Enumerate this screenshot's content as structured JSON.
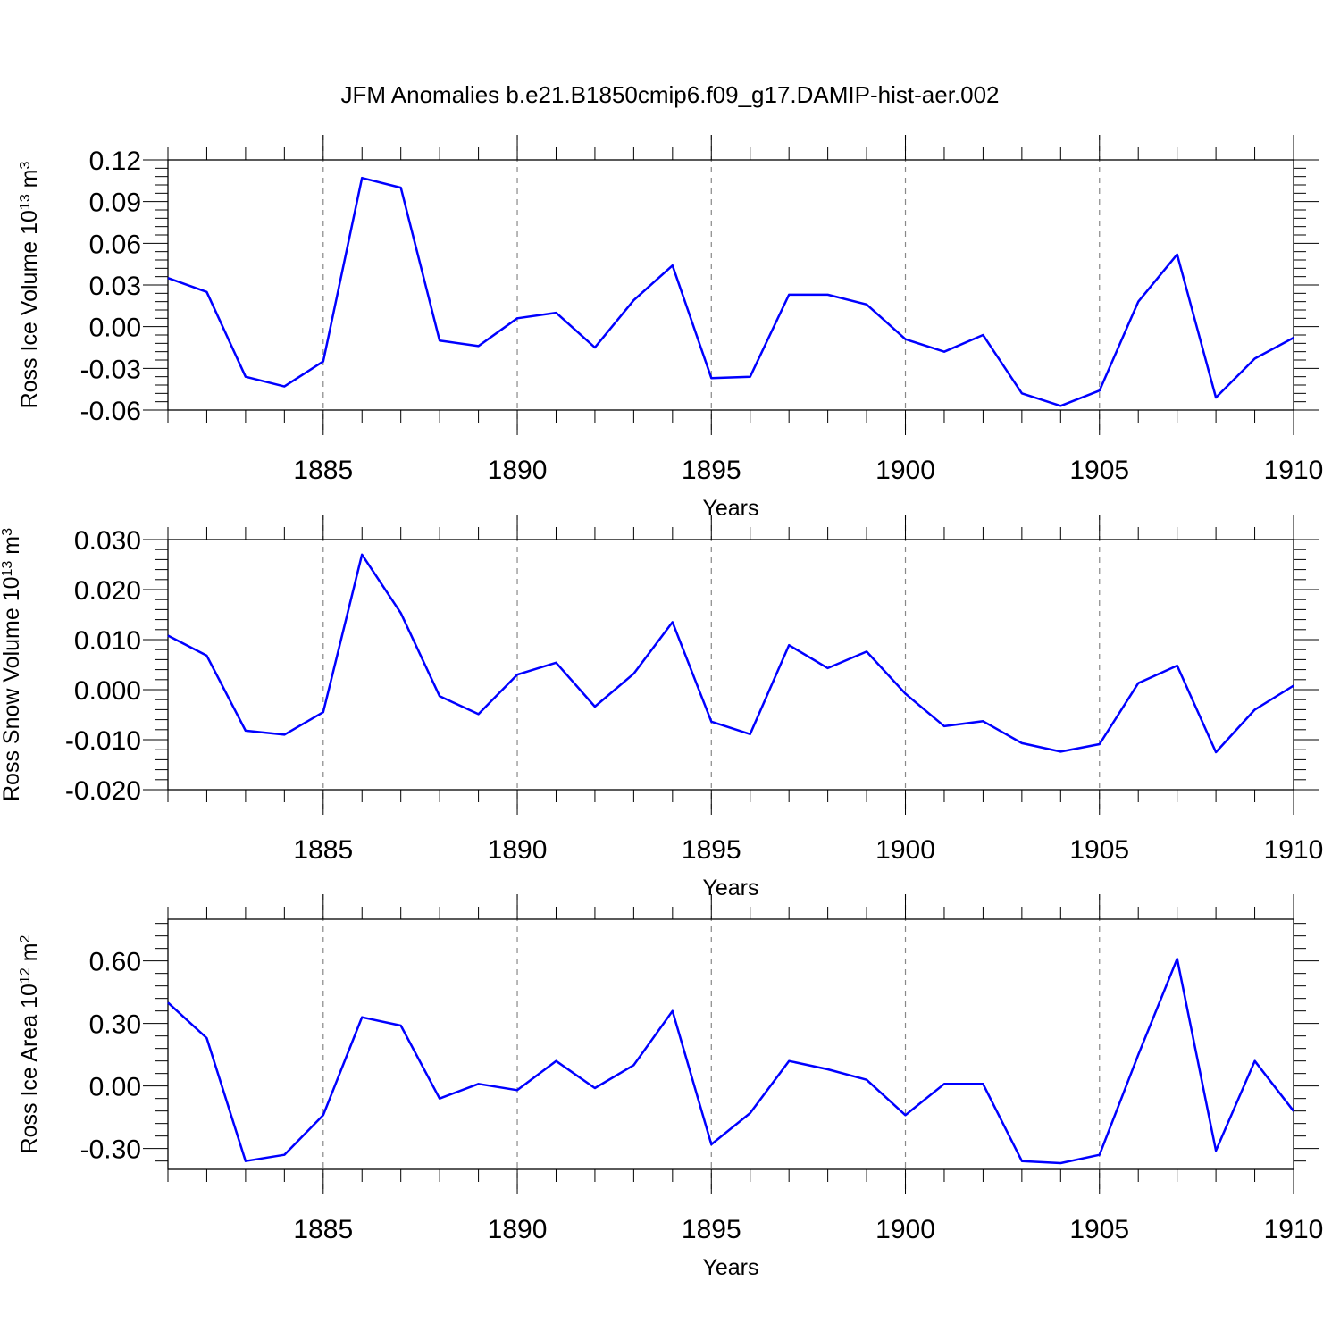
{
  "title": "JFM Anomalies b.e21.B1850cmip6.f09_g17.DAMIP-hist-aer.002",
  "chart_data": [
    {
      "type": "line",
      "xlabel": "Years",
      "ylabel": "Ross Ice Volume 10",
      "ylabel_sup": "13",
      "ylabel_unit": " m",
      "ylabel_unit_sup": "3",
      "x": [
        1881,
        1882,
        1883,
        1884,
        1885,
        1886,
        1887,
        1888,
        1889,
        1890,
        1891,
        1892,
        1893,
        1894,
        1895,
        1896,
        1897,
        1898,
        1899,
        1900,
        1901,
        1902,
        1903,
        1904,
        1905,
        1906,
        1907,
        1908,
        1909,
        1910
      ],
      "xlim": [
        1881,
        1910
      ],
      "xticks": [
        "1885",
        "1890",
        "1895",
        "1900",
        "1905",
        "1910"
      ],
      "ylim": [
        -0.06,
        0.12
      ],
      "yticks": [
        "-0.06",
        "-0.03",
        "0.00",
        "0.03",
        "0.06",
        "0.09",
        "0.12"
      ],
      "series": [
        {
          "values": [
            0.035,
            0.025,
            -0.036,
            -0.043,
            -0.025,
            0.107,
            0.1,
            -0.01,
            -0.014,
            0.006,
            0.01,
            -0.015,
            0.019,
            0.044,
            -0.037,
            -0.036,
            0.023,
            0.023,
            0.016,
            -0.009,
            -0.018,
            -0.006,
            -0.048,
            -0.057,
            -0.046,
            0.018,
            0.052,
            -0.051,
            -0.023,
            -0.008
          ]
        }
      ],
      "grid": "dashed vertical at major x ticks",
      "color": "#0000ff"
    },
    {
      "type": "line",
      "xlabel": "Years",
      "ylabel": "Ross Snow Volume 10",
      "ylabel_sup": "13",
      "ylabel_unit": " m",
      "ylabel_unit_sup": "3",
      "x": [
        1881,
        1882,
        1883,
        1884,
        1885,
        1886,
        1887,
        1888,
        1889,
        1890,
        1891,
        1892,
        1893,
        1894,
        1895,
        1896,
        1897,
        1898,
        1899,
        1900,
        1901,
        1902,
        1903,
        1904,
        1905,
        1906,
        1907,
        1908,
        1909,
        1910
      ],
      "xlim": [
        1881,
        1910
      ],
      "xticks": [
        "1885",
        "1890",
        "1895",
        "1900",
        "1905",
        "1910"
      ],
      "ylim": [
        -0.02,
        0.03
      ],
      "yticks": [
        "-0.020",
        "-0.010",
        "0.000",
        "0.010",
        "0.020",
        "0.030"
      ],
      "series": [
        {
          "values": [
            0.0108,
            0.0068,
            -0.0082,
            -0.009,
            -0.0045,
            0.027,
            0.0153,
            -0.0013,
            -0.0049,
            0.003,
            0.0054,
            -0.0034,
            0.0032,
            0.0135,
            -0.0064,
            -0.0089,
            0.0089,
            0.0043,
            0.0076,
            -0.0008,
            -0.0073,
            -0.0063,
            -0.0107,
            -0.0124,
            -0.0109,
            0.0013,
            0.0048,
            -0.0125,
            -0.004,
            0.0008
          ]
        }
      ],
      "grid": "dashed vertical at major x ticks",
      "color": "#0000ff"
    },
    {
      "type": "line",
      "xlabel": "Years",
      "ylabel": "Ross Ice Area 10",
      "ylabel_sup": "12",
      "ylabel_unit": " m",
      "ylabel_unit_sup": "2",
      "x": [
        1881,
        1882,
        1883,
        1884,
        1885,
        1886,
        1887,
        1888,
        1889,
        1890,
        1891,
        1892,
        1893,
        1894,
        1895,
        1896,
        1897,
        1898,
        1899,
        1900,
        1901,
        1902,
        1903,
        1904,
        1905,
        1906,
        1907,
        1908,
        1909,
        1910
      ],
      "xlim": [
        1881,
        1910
      ],
      "xticks": [
        "1885",
        "1890",
        "1895",
        "1900",
        "1905",
        "1910"
      ],
      "ylim": [
        -0.4,
        0.8
      ],
      "yticks": [
        "-0.30",
        "0.00",
        "0.30",
        "0.60"
      ],
      "series": [
        {
          "values": [
            0.4,
            0.23,
            -0.36,
            -0.33,
            -0.14,
            0.33,
            0.29,
            -0.06,
            0.01,
            -0.02,
            0.12,
            -0.01,
            0.1,
            0.36,
            -0.28,
            -0.13,
            0.12,
            0.08,
            0.03,
            -0.14,
            0.01,
            0.01,
            -0.36,
            -0.37,
            -0.33,
            0.15,
            0.61,
            -0.31,
            0.12,
            -0.12
          ]
        }
      ],
      "grid": "dashed vertical at major x ticks",
      "color": "#0000ff"
    }
  ]
}
